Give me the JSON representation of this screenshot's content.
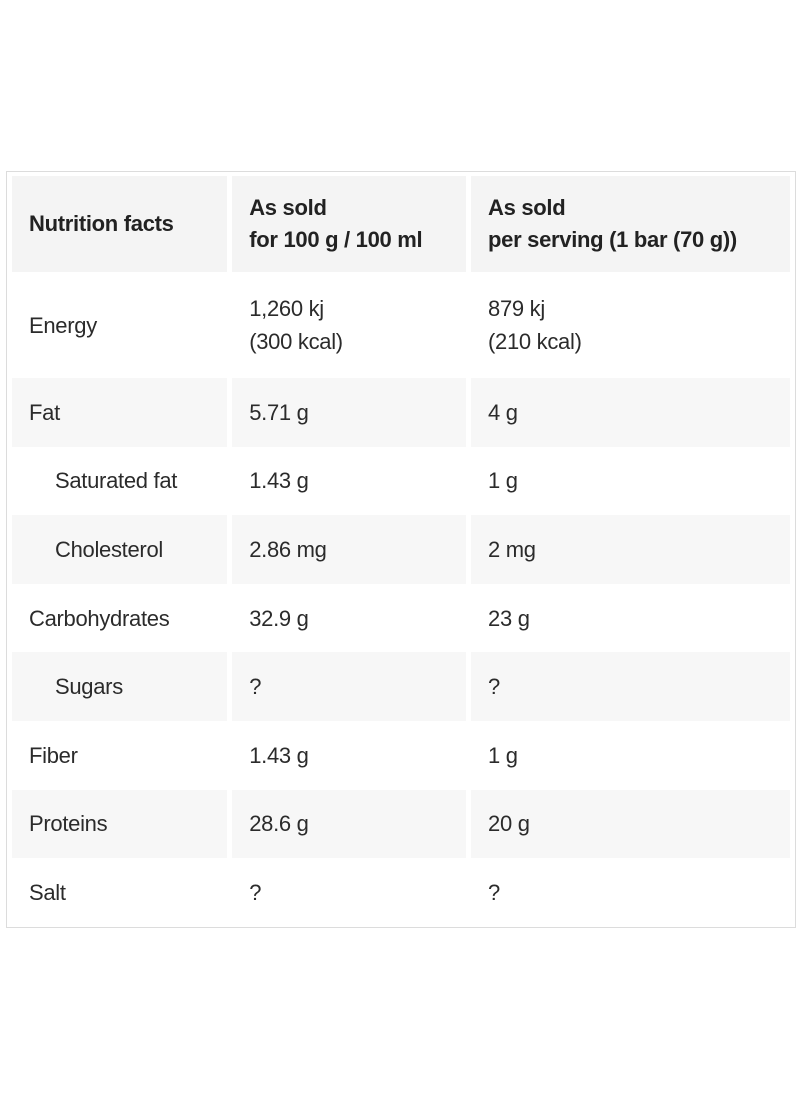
{
  "table": {
    "headers": [
      {
        "line1": "Nutrition facts",
        "line2": ""
      },
      {
        "line1": "As sold",
        "line2": "for 100 g / 100 ml"
      },
      {
        "line1": "As sold",
        "line2": "per serving (1 bar (70 g))"
      }
    ],
    "rows": [
      {
        "nutrient": "Energy",
        "per100_line1": "1,260 kj",
        "per100_line2": "(300 kcal)",
        "serving_line1": "879 kj",
        "serving_line2": "(210 kcal)",
        "indent": false
      },
      {
        "nutrient": "Fat",
        "per100": "5.71 g",
        "serving": "4 g",
        "indent": false
      },
      {
        "nutrient": "Saturated fat",
        "per100": "1.43 g",
        "serving": "1 g",
        "indent": true
      },
      {
        "nutrient": "Cholesterol",
        "per100": "2.86 mg",
        "serving": "2 mg",
        "indent": true
      },
      {
        "nutrient": "Carbohydrates",
        "per100": "32.9 g",
        "serving": "23 g",
        "indent": false
      },
      {
        "nutrient": "Sugars",
        "per100": "?",
        "serving": "?",
        "indent": true
      },
      {
        "nutrient": "Fiber",
        "per100": "1.43 g",
        "serving": "1 g",
        "indent": false
      },
      {
        "nutrient": "Proteins",
        "per100": "28.6 g",
        "serving": "20 g",
        "indent": false
      },
      {
        "nutrient": "Salt",
        "per100": "?",
        "serving": "?",
        "indent": false
      }
    ]
  },
  "colors": {
    "header_bg": "#f4f4f4",
    "stripe_bg": "#f7f7f7",
    "border": "#dcdcdc",
    "text": "#2b2b2b"
  }
}
